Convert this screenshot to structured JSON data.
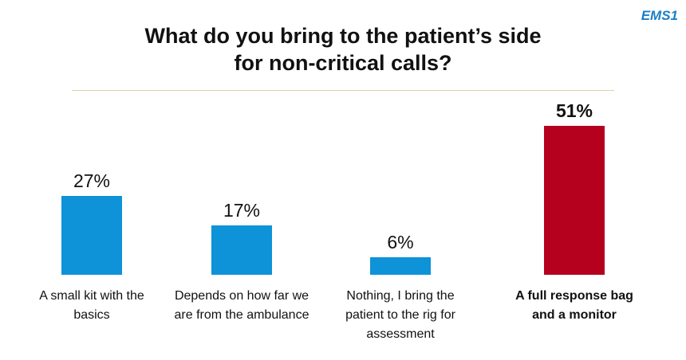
{
  "logo": "EMS1",
  "chart_data": {
    "type": "bar",
    "title": "What do you bring to the patient’s side for non-critical calls?",
    "categories": [
      "A small kit with the basics",
      "Depends on how far we are from the ambulance",
      "Nothing, I bring the patient to the rig for assessment",
      "A full response bag and a monitor"
    ],
    "values": [
      27,
      17,
      6,
      51
    ],
    "value_labels": [
      "27%",
      "17%",
      "6%",
      "51%"
    ],
    "colors": [
      "#0e92d8",
      "#0e92d8",
      "#0e92d8",
      "#b5001e"
    ],
    "highlight": 3
  }
}
